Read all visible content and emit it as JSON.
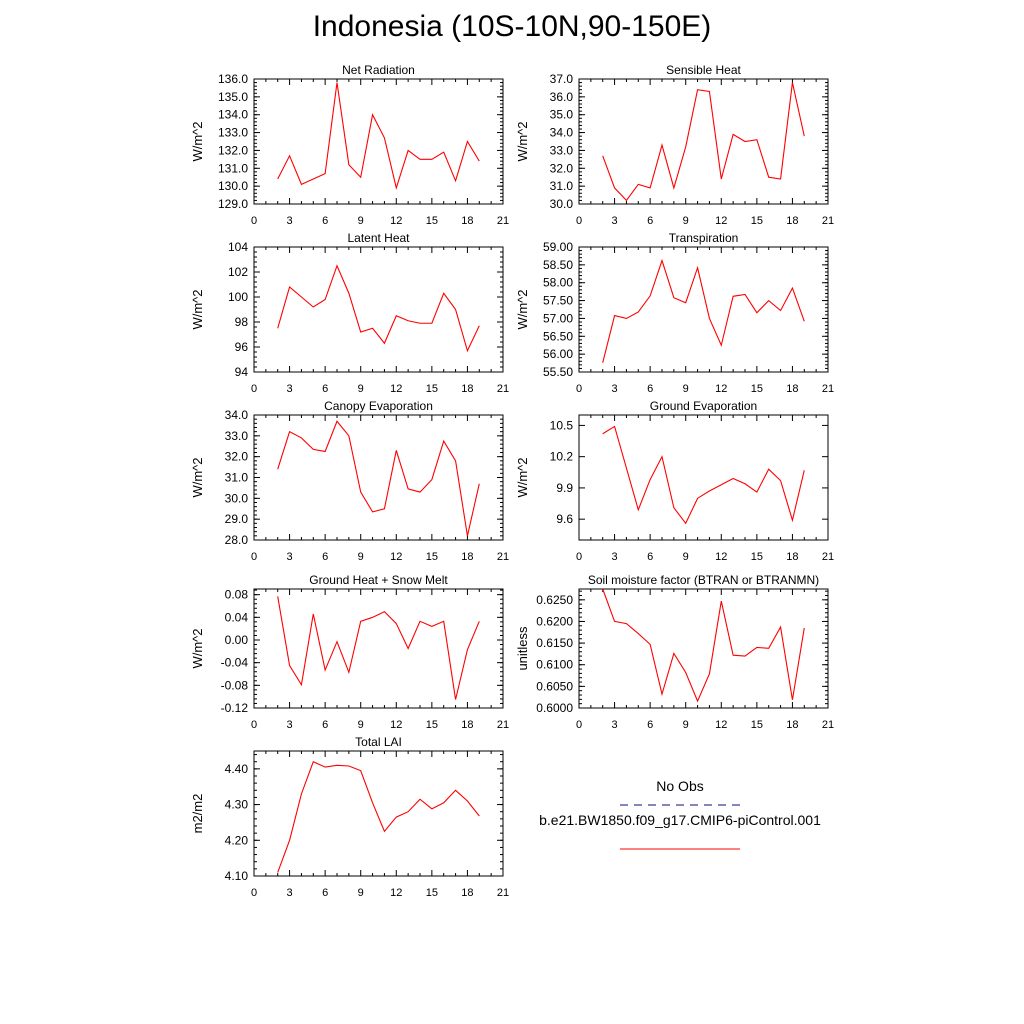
{
  "title": "Indonesia (10S-10N,90-150E)",
  "x_ticks": [
    0,
    3,
    6,
    9,
    12,
    15,
    18,
    21
  ],
  "xlim": [
    0,
    21
  ],
  "chart_data": [
    {
      "type": "line",
      "title": "Net Radiation",
      "ylabel": "W/m^2",
      "ylim": [
        129.0,
        136.0
      ],
      "yticks": [
        "129.0",
        "130.0",
        "131.0",
        "132.0",
        "133.0",
        "134.0",
        "135.0",
        "136.0"
      ],
      "yminor": true,
      "x": [
        2,
        3,
        4,
        5,
        6,
        7,
        8,
        9,
        10,
        11,
        12,
        13,
        14,
        15,
        16,
        17,
        18,
        19
      ],
      "series": [
        {
          "values": [
            130.4,
            131.7,
            130.1,
            130.4,
            130.7,
            135.8,
            131.2,
            130.5,
            134.0,
            132.7,
            129.9,
            132.0,
            131.5,
            131.5,
            131.9,
            130.3,
            132.5,
            131.4
          ]
        }
      ]
    },
    {
      "type": "line",
      "title": "Sensible Heat",
      "ylabel": "W/m^2",
      "ylim": [
        30.0,
        37.0
      ],
      "yticks": [
        "30.0",
        "31.0",
        "32.0",
        "33.0",
        "34.0",
        "35.0",
        "36.0",
        "37.0"
      ],
      "yminor": true,
      "x": [
        2,
        3,
        4,
        5,
        6,
        7,
        8,
        9,
        10,
        11,
        12,
        13,
        14,
        15,
        16,
        17,
        18,
        19
      ],
      "series": [
        {
          "values": [
            32.7,
            30.9,
            30.2,
            31.1,
            30.9,
            33.3,
            30.9,
            33.2,
            36.4,
            36.3,
            31.4,
            33.9,
            33.5,
            33.6,
            31.5,
            31.4,
            36.8,
            33.8
          ]
        }
      ]
    },
    {
      "type": "line",
      "title": "Latent Heat",
      "ylabel": "W/m^2",
      "ylim": [
        94,
        104
      ],
      "yticks": [
        "94",
        "96",
        "98",
        "100",
        "102",
        "104"
      ],
      "yminor": true,
      "x": [
        2,
        3,
        4,
        5,
        6,
        7,
        8,
        9,
        10,
        11,
        12,
        13,
        14,
        15,
        16,
        17,
        18,
        19
      ],
      "series": [
        {
          "values": [
            97.5,
            100.8,
            100.0,
            99.2,
            99.8,
            102.5,
            100.3,
            97.2,
            97.5,
            96.3,
            98.5,
            98.1,
            97.9,
            97.9,
            100.3,
            99.0,
            95.7,
            97.7
          ]
        }
      ]
    },
    {
      "type": "line",
      "title": "Transpiration",
      "ylabel": "W/m^2",
      "ylim": [
        55.5,
        59.0
      ],
      "yticks": [
        "55.50",
        "56.00",
        "56.50",
        "57.00",
        "57.50",
        "58.00",
        "58.50",
        "59.00"
      ],
      "yminor": true,
      "x": [
        2,
        3,
        4,
        5,
        6,
        7,
        8,
        9,
        10,
        11,
        12,
        13,
        14,
        15,
        16,
        17,
        18,
        19
      ],
      "series": [
        {
          "values": [
            55.76,
            57.08,
            57.0,
            57.18,
            57.63,
            58.62,
            57.58,
            57.44,
            58.42,
            57.0,
            56.25,
            57.62,
            57.67,
            57.16,
            57.5,
            57.22,
            57.85,
            56.92
          ]
        }
      ]
    },
    {
      "type": "line",
      "title": "Canopy Evaporation",
      "ylabel": "W/m^2",
      "ylim": [
        28.0,
        34.0
      ],
      "yticks": [
        "28.0",
        "29.0",
        "30.0",
        "31.0",
        "32.0",
        "33.0",
        "34.0"
      ],
      "yminor": true,
      "x": [
        2,
        3,
        4,
        5,
        6,
        7,
        8,
        9,
        10,
        11,
        12,
        13,
        14,
        15,
        16,
        17,
        18,
        19
      ],
      "series": [
        {
          "values": [
            31.4,
            33.2,
            32.9,
            32.35,
            32.25,
            33.7,
            33.0,
            30.3,
            29.35,
            29.5,
            32.3,
            30.45,
            30.3,
            30.9,
            32.75,
            31.8,
            28.2,
            30.7
          ]
        }
      ]
    },
    {
      "type": "line",
      "title": "Ground Evaporation",
      "ylabel": "W/m^2",
      "ylim": [
        9.4,
        10.6
      ],
      "yticks": [
        "9.6",
        "9.9",
        "10.2",
        "10.5"
      ],
      "ytickvals": [
        9.6,
        9.9,
        10.2,
        10.5
      ],
      "yminor": false,
      "x": [
        2,
        3,
        4,
        5,
        6,
        7,
        8,
        9,
        10,
        11,
        12,
        13,
        14,
        15,
        16,
        17,
        18,
        19
      ],
      "series": [
        {
          "values": [
            10.42,
            10.49,
            10.09,
            9.69,
            9.98,
            10.2,
            9.71,
            9.56,
            9.8,
            9.87,
            9.93,
            9.99,
            9.94,
            9.86,
            10.08,
            9.97,
            9.59,
            10.07
          ]
        }
      ]
    },
    {
      "type": "line",
      "title": "Ground Heat + Snow Melt",
      "ylabel": "W/m^2",
      "ylim": [
        -0.12,
        0.09
      ],
      "yticks": [
        "-0.12",
        "-0.08",
        "-0.04",
        "0.00",
        "0.04",
        "0.08"
      ],
      "ytickvals": [
        -0.12,
        -0.08,
        -0.04,
        0.0,
        0.04,
        0.08
      ],
      "yminor": true,
      "x": [
        2,
        3,
        4,
        5,
        6,
        7,
        8,
        9,
        10,
        11,
        12,
        13,
        14,
        15,
        16,
        17,
        18,
        19
      ],
      "series": [
        {
          "values": [
            0.077,
            -0.045,
            -0.079,
            0.046,
            -0.053,
            -0.003,
            -0.057,
            0.033,
            0.04,
            0.05,
            0.029,
            -0.015,
            0.033,
            0.024,
            0.033,
            -0.105,
            -0.017,
            0.033
          ]
        }
      ]
    },
    {
      "type": "line",
      "title": "Soil moisture factor (BTRAN or BTRANMN)",
      "ylabel": "unitless",
      "ylim": [
        0.6,
        0.6275
      ],
      "yticks": [
        "0.6000",
        "0.6050",
        "0.6100",
        "0.6150",
        "0.6200",
        "0.6250"
      ],
      "ytickvals": [
        0.6,
        0.605,
        0.61,
        0.615,
        0.62,
        0.625
      ],
      "yminor": true,
      "x": [
        2,
        3,
        4,
        5,
        6,
        7,
        8,
        9,
        10,
        11,
        12,
        13,
        14,
        15,
        16,
        17,
        18,
        19
      ],
      "series": [
        {
          "values": [
            0.6275,
            0.62,
            0.6195,
            0.6172,
            0.6147,
            0.6032,
            0.6126,
            0.6082,
            0.6016,
            0.6079,
            0.6247,
            0.6122,
            0.612,
            0.614,
            0.6138,
            0.6187,
            0.6019,
            0.6185
          ]
        }
      ]
    },
    {
      "type": "line",
      "title": "Total LAI",
      "ylabel": "m2/m2",
      "ylim": [
        4.1,
        4.45
      ],
      "yticks": [
        "4.10",
        "4.20",
        "4.30",
        "4.40"
      ],
      "ytickvals": [
        4.1,
        4.2,
        4.3,
        4.4
      ],
      "yminor": true,
      "x": [
        2,
        3,
        4,
        5,
        6,
        7,
        8,
        9,
        10,
        11,
        12,
        13,
        14,
        15,
        16,
        17,
        18,
        19
      ],
      "series": [
        {
          "values": [
            4.11,
            4.2,
            4.33,
            4.42,
            4.405,
            4.41,
            4.408,
            4.395,
            4.305,
            4.225,
            4.265,
            4.28,
            4.315,
            4.288,
            4.305,
            4.34,
            4.31,
            4.268
          ]
        }
      ]
    }
  ],
  "legend": {
    "entries": [
      {
        "label": "No Obs",
        "color": "#3c3c96",
        "style": "dashed"
      },
      {
        "label": "b.e21.BW1850.f09_g17.CMIP6-piControl.001",
        "color": "#ff0000",
        "style": "solid"
      }
    ]
  },
  "colors": {
    "line": "#ff0000",
    "axis": "#000000"
  }
}
